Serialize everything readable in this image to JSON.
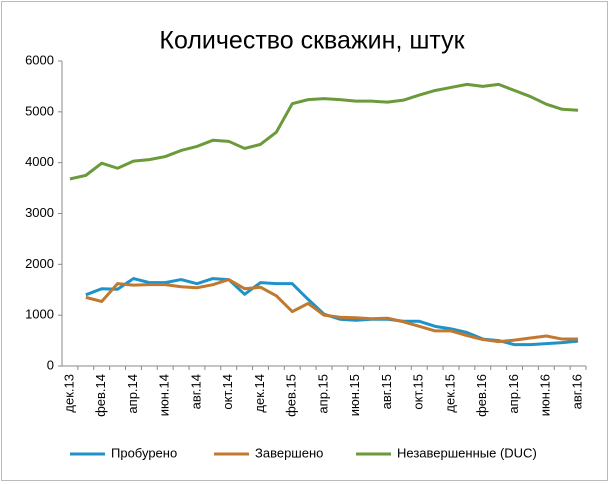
{
  "chart_data": {
    "type": "line",
    "title": "Количество скважин, штук",
    "categories": [
      "дек.13",
      null,
      "фев.14",
      null,
      "апр.14",
      null,
      "июн.14",
      null,
      "авг.14",
      null,
      "окт.14",
      null,
      "дек.14",
      null,
      "фев.15",
      null,
      "апр.15",
      null,
      "июн.15",
      null,
      "авг.15",
      null,
      "окт.15",
      null,
      "дек.15",
      null,
      "фев.16",
      null,
      "апр.16",
      null,
      "июн.16",
      null,
      "авг.16"
    ],
    "series": [
      {
        "name": "Пробурено",
        "color": "#1f93c9",
        "values": [
          null,
          1400,
          1520,
          1510,
          1720,
          1640,
          1640,
          1700,
          1620,
          1720,
          1700,
          1410,
          1640,
          1620,
          1620,
          1310,
          1020,
          920,
          900,
          920,
          920,
          880,
          880,
          780,
          730,
          660,
          530,
          500,
          420,
          420,
          440,
          460,
          490
        ]
      },
      {
        "name": "Завершено",
        "color": "#c0792f",
        "values": [
          null,
          1350,
          1270,
          1620,
          1590,
          1600,
          1600,
          1560,
          1540,
          1600,
          1700,
          1520,
          1550,
          1380,
          1070,
          1230,
          1000,
          960,
          950,
          930,
          940,
          870,
          780,
          690,
          690,
          600,
          520,
          480,
          510,
          550,
          590,
          530,
          530
        ]
      },
      {
        "name": "Незавершенные (DUC)",
        "color": "#6a9a3a",
        "values": [
          3680,
          3750,
          3990,
          3890,
          4030,
          4060,
          4120,
          4240,
          4320,
          4440,
          4420,
          4280,
          4360,
          4600,
          5160,
          5240,
          5260,
          5240,
          5210,
          5210,
          5190,
          5230,
          5330,
          5420,
          5480,
          5540,
          5500,
          5540,
          5420,
          5300,
          5150,
          5050,
          5030
        ]
      }
    ],
    "ylim": [
      0,
      6000
    ],
    "yticks": [
      0,
      1000,
      2000,
      3000,
      4000,
      5000,
      6000
    ],
    "grid": false
  }
}
